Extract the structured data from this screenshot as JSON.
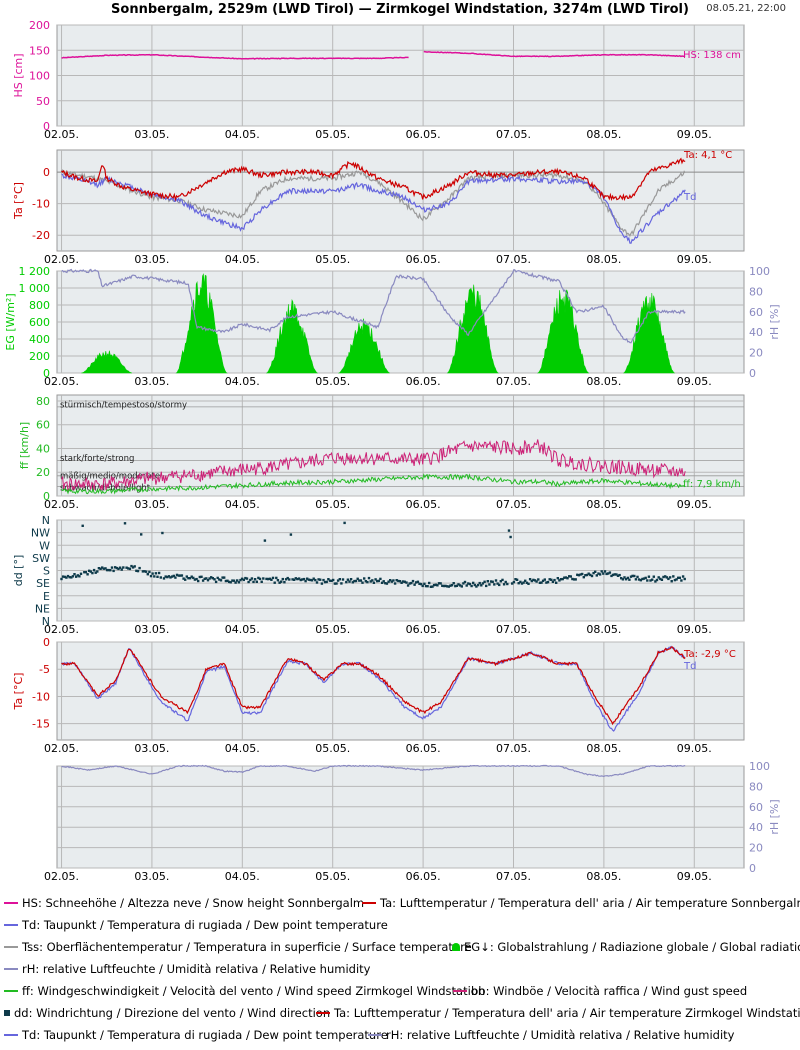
{
  "header": {
    "title": "Sonnbergalm, 2529m (LWD Tirol) — Zirmkogel Windstation, 3274m (LWD Tirol)",
    "timestamp": "08.05.21, 22:00"
  },
  "colors": {
    "hs": "#dd1199",
    "ta": "#cc0000",
    "td": "#6666dd",
    "tss": "#999999",
    "eg": "#00cc00",
    "rh": "#8a8ac0",
    "ff": "#22bb22",
    "bb": "#cc2277",
    "dd": "#0e3a4a",
    "grid": "#b8b8b8",
    "plot_bg": "#e8ecee"
  },
  "chart_data": [
    {
      "type": "line",
      "name": "snow-height",
      "ylabel": "HS [cm]",
      "ylim": [
        0,
        200
      ],
      "yticks": [
        0,
        50,
        100,
        150,
        200
      ],
      "x_tick_labels": [
        "02.05.",
        "03.05.",
        "04.05.",
        "05.05.",
        "06.05.",
        "07.05.",
        "08.05.",
        "09.05."
      ],
      "annotation": "HS: 138 cm",
      "series": [
        {
          "key": "hs",
          "x": [
            0,
            0.5,
            1,
            1.5,
            2,
            2.5,
            3,
            3.5,
            3.85,
            3.88,
            4,
            4.5,
            5,
            5.5,
            6,
            6.5,
            6.9
          ],
          "y": [
            135,
            140,
            141,
            137,
            133,
            134,
            134,
            134,
            136,
            null,
            147,
            144,
            138,
            138,
            141,
            141,
            138
          ]
        }
      ]
    },
    {
      "type": "line",
      "name": "temperature-sonnbergalm",
      "ylabel": "Ta [°C]",
      "ylim": [
        -25,
        7
      ],
      "yticks": [
        -20,
        -10,
        0
      ],
      "x_tick_labels": [
        "02.05.",
        "03.05.",
        "04.05.",
        "05.05.",
        "06.05.",
        "07.05.",
        "08.05.",
        "09.05."
      ],
      "annotations": [
        "Ta: 4,1 °C",
        "Td"
      ],
      "series": [
        {
          "key": "ta",
          "x": [
            0,
            0.2,
            0.4,
            0.45,
            0.5,
            0.7,
            1,
            1.3,
            1.55,
            1.8,
            2.0,
            2.2,
            2.5,
            2.8,
            3.0,
            3.2,
            3.5,
            3.8,
            4.0,
            4.3,
            4.5,
            4.8,
            5.0,
            5.3,
            5.5,
            5.8,
            6.0,
            6.3,
            6.5,
            6.8,
            6.9
          ],
          "y": [
            0,
            -2,
            -3,
            3,
            -2,
            -5,
            -7,
            -8,
            -4,
            0,
            1,
            -1,
            0,
            0,
            -1,
            3,
            -2,
            -5,
            -8,
            -4,
            0,
            -1,
            -1,
            0,
            0,
            -2,
            -8,
            -8,
            0,
            3,
            4
          ]
        },
        {
          "key": "td",
          "x": [
            0,
            0.4,
            0.5,
            1.0,
            1.3,
            1.6,
            2.0,
            2.2,
            2.5,
            3.0,
            3.3,
            3.5,
            3.8,
            4.0,
            4.3,
            4.5,
            5.0,
            5.5,
            5.8,
            6.0,
            6.2,
            6.3,
            6.6,
            6.9
          ],
          "y": [
            -1,
            -4,
            -2,
            -7,
            -9,
            -14,
            -18,
            -12,
            -6,
            -6,
            -4,
            -6,
            -8,
            -12,
            -10,
            -3,
            -2,
            -3,
            -3,
            -8,
            -20,
            -22,
            -13,
            -6
          ]
        },
        {
          "key": "tss",
          "x": [
            0,
            0.4,
            1.0,
            1.3,
            1.6,
            1.8,
            2.0,
            2.2,
            2.5,
            3.0,
            3.3,
            3.5,
            3.8,
            4.0,
            4.3,
            4.5,
            5.0,
            5.5,
            5.8,
            6.0,
            6.2,
            6.3,
            6.6,
            6.9
          ],
          "y": [
            0,
            -2,
            -8,
            -9,
            -12,
            -13,
            -14,
            -6,
            -2,
            -2,
            0,
            -3,
            -10,
            -15,
            -8,
            -2,
            -1,
            -1,
            -3,
            -10,
            -18,
            -20,
            -6,
            0
          ]
        }
      ]
    },
    {
      "type": "area",
      "name": "radiation-humidity",
      "ylabel": "EG [W/m²]",
      "ylabel_right": "rH [%]",
      "ylim": [
        0,
        1200
      ],
      "yticks": [
        "0",
        "200",
        "400",
        "600",
        "800",
        "1 000",
        "1 200"
      ],
      "ylim_right": [
        0,
        100
      ],
      "yticks_right": [
        0,
        20,
        40,
        60,
        80,
        100
      ],
      "x_tick_labels": [
        "02.05.",
        "03.05.",
        "04.05.",
        "05.05.",
        "06.05.",
        "07.05.",
        "08.05.",
        "09.05."
      ],
      "series": [
        {
          "key": "eg",
          "peaks": [
            {
              "center": 0.5,
              "peak": 250
            },
            {
              "center": 1.55,
              "peak": 1120
            },
            {
              "center": 2.55,
              "peak": 800
            },
            {
              "center": 3.35,
              "peak": 600
            },
            {
              "center": 4.55,
              "peak": 1000
            },
            {
              "center": 5.55,
              "peak": 950
            },
            {
              "center": 6.5,
              "peak": 900
            }
          ]
        },
        {
          "key": "rh",
          "x": [
            0,
            0.4,
            0.45,
            0.8,
            1.4,
            1.5,
            1.8,
            2.0,
            2.3,
            2.5,
            3.0,
            3.5,
            3.7,
            4.0,
            4.3,
            4.5,
            5.0,
            5.5,
            5.7,
            6.0,
            6.2,
            6.3,
            6.5,
            6.9
          ],
          "y": [
            100,
            100,
            85,
            95,
            88,
            45,
            40,
            48,
            42,
            55,
            60,
            45,
            95,
            92,
            55,
            38,
            100,
            90,
            60,
            65,
            35,
            30,
            60,
            60
          ]
        }
      ]
    },
    {
      "type": "line",
      "name": "wind-speed",
      "ylabel": "ff [km/h]",
      "ylim": [
        0,
        85
      ],
      "yticks": [
        0,
        20,
        40,
        60,
        80
      ],
      "x_tick_labels": [
        "02.05.",
        "03.05.",
        "04.05.",
        "05.05.",
        "06.05.",
        "07.05.",
        "08.05.",
        "09.05."
      ],
      "category_labels": [
        "stürmisch/tempestoso/stormy",
        "stark/forte/strong",
        "mäßig/medio/moderate",
        "schwach/debole/light"
      ],
      "annotation": "ff: 7,9 km/h",
      "series": [
        {
          "key": "bb",
          "x": [
            0,
            0.5,
            1.0,
            1.5,
            2.0,
            2.5,
            3.0,
            3.5,
            4.0,
            4.5,
            5.0,
            5.3,
            5.5,
            6.0,
            6.5,
            6.9
          ],
          "y": [
            10,
            10,
            15,
            18,
            22,
            26,
            32,
            32,
            30,
            42,
            40,
            42,
            30,
            25,
            22,
            20
          ]
        },
        {
          "key": "ff",
          "x": [
            0,
            0.5,
            1.0,
            1.5,
            2.0,
            2.5,
            3.0,
            3.5,
            4.0,
            4.5,
            5.0,
            5.3,
            5.5,
            6.0,
            6.5,
            6.9
          ],
          "y": [
            4,
            4,
            6,
            7,
            9,
            11,
            12,
            14,
            16,
            16,
            12,
            12,
            10,
            13,
            10,
            8
          ]
        }
      ]
    },
    {
      "type": "scatter",
      "name": "wind-direction",
      "ylabel": "dd [°]",
      "ylim": [
        0,
        360
      ],
      "yticks": [
        "N",
        "NE",
        "E",
        "SE",
        "S",
        "SW",
        "W",
        "NW",
        "N"
      ],
      "x_tick_labels": [
        "02.05.",
        "03.05.",
        "04.05.",
        "05.05.",
        "06.05.",
        "07.05.",
        "08.05.",
        "09.05."
      ],
      "series": [
        {
          "key": "dd",
          "x": [
            0,
            0.2,
            0.5,
            0.8,
            1.0,
            1.3,
            1.5,
            2.0,
            2.5,
            3.0,
            3.5,
            4.0,
            4.5,
            5.0,
            5.5,
            6.0,
            6.2,
            6.5,
            6.9
          ],
          "y": [
            150,
            165,
            185,
            190,
            165,
            155,
            150,
            145,
            145,
            140,
            145,
            130,
            130,
            140,
            145,
            175,
            155,
            150,
            150
          ]
        }
      ]
    },
    {
      "type": "line",
      "name": "temperature-zirmkogel",
      "ylabel": "Ta [°C]",
      "ylim": [
        -18,
        0
      ],
      "yticks": [
        -15,
        -10,
        -5,
        0
      ],
      "x_tick_labels": [
        "02.05.",
        "03.05.",
        "04.05.",
        "05.05.",
        "06.05.",
        "07.05.",
        "08.05.",
        "09.05."
      ],
      "annotations": [
        "Ta: -2,9 °C",
        "Td"
      ],
      "series": [
        {
          "key": "ta",
          "x": [
            0,
            0.15,
            0.4,
            0.6,
            0.75,
            0.9,
            1.1,
            1.4,
            1.6,
            1.8,
            2.0,
            2.2,
            2.5,
            2.7,
            2.9,
            3.1,
            3.3,
            3.5,
            3.8,
            4.0,
            4.2,
            4.5,
            4.8,
            5.0,
            5.2,
            5.5,
            5.7,
            5.9,
            6.1,
            6.4,
            6.6,
            6.75,
            6.9
          ],
          "y": [
            -4,
            -4,
            -10,
            -7,
            -1,
            -5,
            -10,
            -13,
            -5,
            -4,
            -12,
            -12,
            -3,
            -4,
            -7,
            -4,
            -4,
            -6,
            -11,
            -13,
            -11,
            -3,
            -4,
            -3,
            -2,
            -4,
            -4,
            -10,
            -15,
            -8,
            -2,
            -1,
            -2.9
          ]
        },
        {
          "key": "td",
          "x": [
            0,
            0.15,
            0.4,
            0.6,
            0.75,
            0.9,
            1.1,
            1.4,
            1.6,
            1.8,
            2.0,
            2.2,
            2.5,
            2.7,
            2.9,
            3.1,
            3.3,
            3.5,
            3.8,
            4.0,
            4.2,
            4.5,
            4.8,
            5.0,
            5.2,
            5.5,
            5.7,
            5.9,
            6.1,
            6.4,
            6.6,
            6.75,
            6.9
          ],
          "y": [
            -4,
            -4,
            -10.5,
            -7.5,
            -1,
            -5.5,
            -11,
            -14.5,
            -5.5,
            -4.5,
            -13,
            -13,
            -3.5,
            -4,
            -7.5,
            -4,
            -4,
            -6.5,
            -12,
            -14,
            -12,
            -3,
            -4,
            -3,
            -2,
            -4,
            -4,
            -11,
            -16.5,
            -9,
            -2,
            -1,
            -3
          ]
        }
      ]
    },
    {
      "type": "line",
      "name": "humidity-zirmkogel",
      "ylabel_right": "rH [%]",
      "ylim_right": [
        0,
        100
      ],
      "yticks_right": [
        0,
        20,
        40,
        60,
        80,
        100
      ],
      "x_tick_labels": [
        "02.05.",
        "03.05.",
        "04.05.",
        "05.05.",
        "06.05.",
        "07.05.",
        "08.05.",
        "09.05."
      ],
      "series": [
        {
          "key": "rh",
          "x": [
            0,
            0.3,
            0.6,
            0.8,
            1.0,
            1.3,
            1.6,
            1.8,
            2.0,
            2.2,
            2.5,
            2.8,
            3.0,
            3.5,
            4.0,
            4.5,
            5.0,
            5.5,
            5.8,
            6.0,
            6.2,
            6.5,
            6.9
          ],
          "y": [
            100,
            96,
            100,
            96,
            92,
            100,
            100,
            95,
            94,
            100,
            100,
            95,
            100,
            100,
            96,
            100,
            100,
            100,
            92,
            90,
            92,
            100,
            100
          ]
        }
      ]
    }
  ],
  "legend": [
    {
      "key": "hs",
      "kind": "line",
      "text": "HS: Schneehöhe / Altezza neve / Snow height  Sonnbergalm"
    },
    {
      "key": "ta",
      "kind": "line",
      "text": "Ta: Lufttemperatur / Temperatura dell' aria / Air temperature  Sonnbergalm"
    },
    {
      "key": "td",
      "kind": "line",
      "text": "Td: Taupunkt / Temperatura di rugiada / Dew point temperature"
    },
    {
      "key": "tss",
      "kind": "line",
      "text": "Tss: Oberflächentemperatur / Temperatura in superficie / Surface temperature"
    },
    {
      "key": "eg",
      "kind": "eg",
      "text": "EG↓: Globalstrahlung / Radiazione globale / Global radiation"
    },
    {
      "key": "rh",
      "kind": "line",
      "text": "rH: relative Luftfeuchte / Umidità relativa / Relative humidity"
    },
    {
      "key": "ff",
      "kind": "line",
      "text": "ff: Windgeschwindigkeit / Velocità del vento / Wind speed  Zirmkogel Windstation"
    },
    {
      "key": "bb",
      "kind": "line",
      "text": "bb: Windböe / Velocità raffica / Wind gust speed"
    },
    {
      "key": "dd",
      "kind": "square",
      "text": "dd: Windrichtung / Direzione del vento / Wind direction"
    },
    {
      "key": "ta",
      "kind": "line",
      "text": "Ta: Lufttemperatur / Temperatura dell' aria / Air temperature  Zirmkogel Windstation"
    },
    {
      "key": "td",
      "kind": "line",
      "text": "Td: Taupunkt / Temperatura di rugiada / Dew point temperature"
    },
    {
      "key": "rh",
      "kind": "line",
      "text": "rH: relative Luftfeuchte / Umidità relativa / Relative humidity"
    }
  ]
}
